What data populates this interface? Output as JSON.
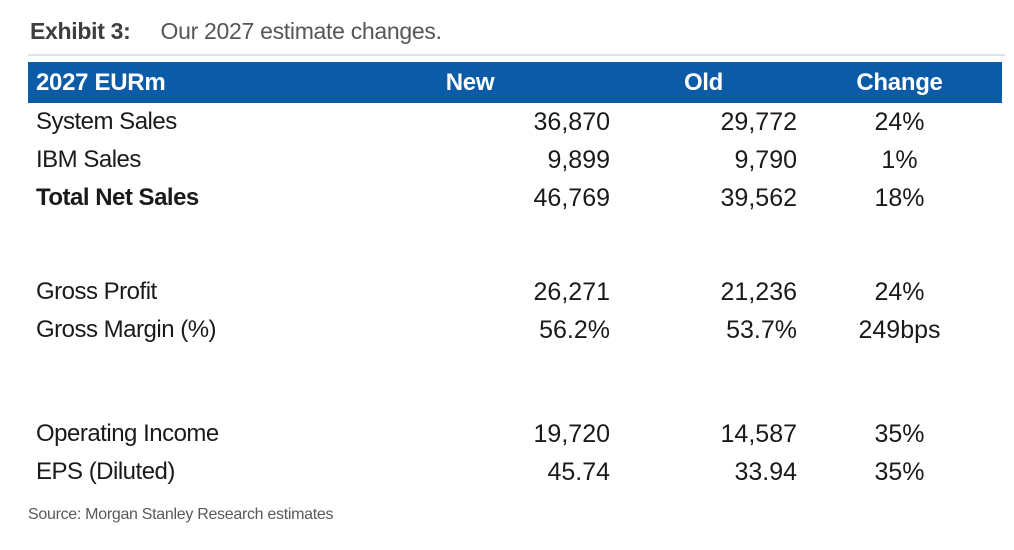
{
  "exhibit": {
    "label": "Exhibit 3:",
    "caption": "Our 2027 estimate changes."
  },
  "table": {
    "header_bg_color": "#0b5ba6",
    "header_text_color": "#ffffff",
    "columns": [
      "2027 EURm",
      "New",
      "Old",
      "Change"
    ],
    "rows": [
      {
        "label": "System Sales",
        "new": "36,870",
        "old": "29,772",
        "change": "24%"
      },
      {
        "label": "IBM Sales",
        "new": "9,899",
        "old": "9,790",
        "change": "1%"
      },
      {
        "label": "Total Net Sales",
        "new": "46,769",
        "old": "39,562",
        "change": "18%",
        "bold": true
      },
      {
        "spacer": true,
        "height": 56
      },
      {
        "label": "Gross Profit",
        "new": "26,271",
        "old": "21,236",
        "change": "24%"
      },
      {
        "label": "Gross Margin (%)",
        "new": "56.2%",
        "old": "53.7%",
        "change": "249bps"
      },
      {
        "spacer": true,
        "height": 66
      },
      {
        "label": "Operating Income",
        "new": "19,720",
        "old": "14,587",
        "change": "35%"
      },
      {
        "label": "EPS (Diluted)",
        "new": "45.74",
        "old": "33.94",
        "change": "35%"
      }
    ]
  },
  "source": "Source: Morgan Stanley Research estimates"
}
